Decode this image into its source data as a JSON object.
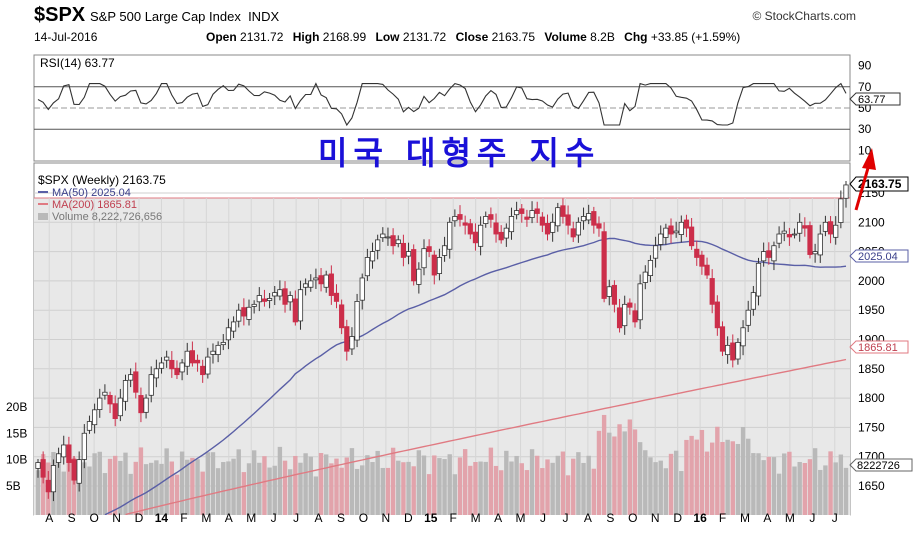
{
  "header": {
    "symbol": "$SPX",
    "name": "S&P 500 Large Cap Index",
    "exchange": "INDX",
    "brand": "© StockCharts.com",
    "date": "14-Jul-2016",
    "open_label": "Open",
    "open": "2131.72",
    "high_label": "High",
    "high": "2168.99",
    "low_label": "Low",
    "low": "2131.72",
    "close_label": "Close",
    "close": "2163.75",
    "volume_label": "Volume",
    "volume": "8.2B",
    "chg_label": "Chg",
    "chg": "+33.85 (+1.59%)"
  },
  "overlay_text": "미국 대형주 지수",
  "rsi": {
    "legend": "RSI(14) 63.77",
    "current": 63.77,
    "current_label": "63.77",
    "ticks": [
      90,
      70,
      50,
      30,
      10
    ],
    "lines": [
      70,
      50,
      30
    ]
  },
  "price": {
    "legend_main": "$SPX (Weekly) 2163.75",
    "legend_ma50": "MA(50) 2025.04",
    "legend_ma200": "MA(200) 1865.81",
    "legend_volume": "Volume 8,222,726,656",
    "last": 2163.75,
    "last_label": "2163.75",
    "ma50_last": 2025.04,
    "ma50_label": "2025.04",
    "ma200_last": 1865.81,
    "ma200_label": "1865.81",
    "volume_label": "8222726",
    "ticks": [
      2150,
      2100,
      2050,
      2000,
      1950,
      1900,
      1850,
      1800,
      1750,
      1700,
      1650
    ],
    "volume_ticks": [
      "20B",
      "15B",
      "10B",
      "5B"
    ],
    "volume_tick_values": [
      20,
      15,
      10,
      5
    ]
  },
  "colors": {
    "up": "#ffffff",
    "down": "#cc2e4a",
    "ma50": "#5a5fa6",
    "ma200": "#e07a82",
    "rsi_line": "#333333",
    "arrow": "#e00000",
    "volume_up": "#b9b9b9",
    "volume_down": "#e2a3ab"
  },
  "x_axis": {
    "labels": [
      "A",
      "S",
      "O",
      "N",
      "D",
      "14",
      "F",
      "M",
      "A",
      "M",
      "J",
      "J",
      "A",
      "S",
      "O",
      "N",
      "D",
      "15",
      "F",
      "M",
      "A",
      "M",
      "J",
      "J",
      "A",
      "S",
      "O",
      "N",
      "D",
      "16",
      "F",
      "M",
      "A",
      "M",
      "J",
      "J"
    ],
    "bold": [
      "14",
      "15",
      "16"
    ]
  },
  "chart_data": {
    "type": "candlestick",
    "title": "$SPX S&P 500 Large Cap Index (Weekly)",
    "period": "Aug 2013 – Jul 2016",
    "closes": [
      1690,
      1665,
      1640,
      1685,
      1705,
      1720,
      1690,
      1660,
      1695,
      1740,
      1760,
      1780,
      1800,
      1810,
      1790,
      1765,
      1800,
      1830,
      1840,
      1810,
      1775,
      1800,
      1840,
      1850,
      1860,
      1870,
      1850,
      1840,
      1860,
      1880,
      1860,
      1860,
      1840,
      1870,
      1880,
      1890,
      1895,
      1920,
      1930,
      1950,
      1940,
      1955,
      1960,
      1975,
      1965,
      1970,
      1980,
      1985,
      1960,
      1975,
      1930,
      1985,
      1995,
      2000,
      2005,
      1995,
      2010,
      1975,
      1965,
      1920,
      1880,
      1905,
      1965,
      2005,
      2040,
      2050,
      2070,
      2080,
      2075,
      2060,
      2070,
      2040,
      2050,
      2000,
      2020,
      2055,
      2050,
      2010,
      2040,
      2060,
      2100,
      2110,
      2105,
      2095,
      2080,
      2065,
      2095,
      2110,
      2105,
      2080,
      2070,
      2090,
      2110,
      2120,
      2115,
      2105,
      2120,
      2115,
      2095,
      2080,
      2100,
      2125,
      2110,
      2095,
      2075,
      2100,
      2110,
      2115,
      2095,
      2090,
      1970,
      1990,
      1960,
      1920,
      1960,
      1955,
      1930,
      1995,
      2015,
      2035,
      2060,
      2080,
      2090,
      2080,
      2085,
      2100,
      2090,
      2060,
      2040,
      2025,
      2010,
      1960,
      1920,
      1880,
      1890,
      1865,
      1895,
      1920,
      1950,
      1980,
      2030,
      2050,
      2040,
      2060,
      2080,
      2085,
      2075,
      2080,
      2100,
      2090,
      2045,
      2050,
      2080,
      2100,
      2080,
      2095,
      2140,
      2163.75
    ]
  }
}
